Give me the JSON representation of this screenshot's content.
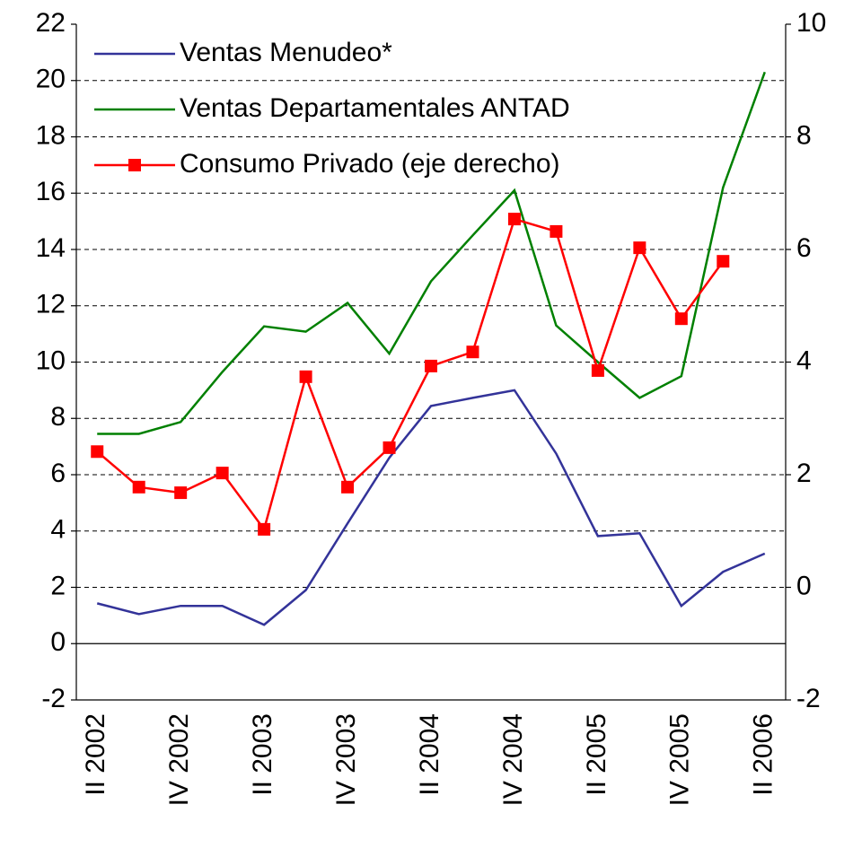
{
  "chart_data": {
    "type": "line",
    "categories": [
      "II 2002",
      null,
      "IV 2002",
      null,
      "II 2003",
      null,
      "IV 2003",
      null,
      "II 2004",
      null,
      "IV 2004",
      null,
      "II 2005",
      null,
      "IV 2005",
      null,
      "II 2006"
    ],
    "series": [
      {
        "name": "Ventas Menudeo*",
        "color": "#333399",
        "axis": "y",
        "marker": "none",
        "values": [
          1.43,
          1.05,
          1.34,
          1.34,
          0.67,
          1.9,
          4.27,
          6.6,
          8.44,
          8.73,
          9.0,
          6.75,
          3.82,
          3.92,
          1.34,
          2.55,
          3.2
        ]
      },
      {
        "name": "Ventas Departamentales ANTAD",
        "color": "#008000",
        "axis": "y",
        "marker": "none",
        "values": [
          7.45,
          7.45,
          7.87,
          9.65,
          11.27,
          11.08,
          12.1,
          10.3,
          12.87,
          14.5,
          16.1,
          11.3,
          10.0,
          8.73,
          9.5,
          16.2,
          20.3
        ]
      },
      {
        "name": "Consumo Privado (eje derecho)",
        "color": "#ff0000",
        "axis": "y2",
        "marker": "square",
        "values": [
          2.41,
          1.78,
          1.68,
          2.03,
          1.03,
          3.74,
          1.78,
          2.48,
          3.93,
          4.18,
          6.54,
          6.32,
          3.85,
          6.03,
          4.77,
          5.79,
          null
        ]
      }
    ],
    "ylim": [
      -2,
      22
    ],
    "yticks": [
      -2,
      0,
      2,
      4,
      6,
      8,
      10,
      12,
      14,
      16,
      18,
      20,
      22
    ],
    "y2lim": [
      -2,
      10
    ],
    "y2ticks": [
      -2,
      0,
      2,
      4,
      6,
      8,
      10
    ],
    "grid": true,
    "legend": "upper left"
  }
}
